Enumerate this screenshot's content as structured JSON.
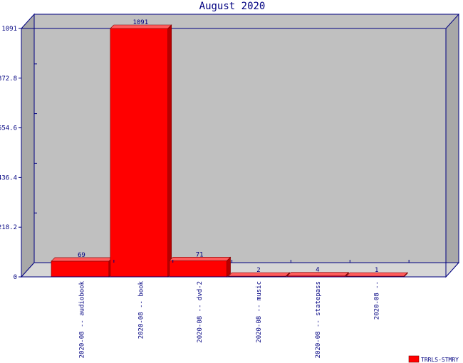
{
  "chart_data": {
    "type": "bar",
    "title": "August 2020",
    "categories": [
      "2020-08 -- audiobook",
      "2020-08 -- book",
      "2020-08 -- dvd-2",
      "2020-08 -- music",
      "2020-08 -- statepass",
      "2020-08 --"
    ],
    "series": [
      {
        "name": "TRRLS-STMRY",
        "values": [
          69,
          1091,
          71,
          2,
          4,
          1
        ]
      }
    ],
    "ylim": [
      0,
      1091
    ],
    "yticks": [
      "0",
      "218.2",
      "436.4",
      "654.6",
      "872.8",
      "1091"
    ],
    "xlabel": "",
    "ylabel": "",
    "legend_position": "bottom-right",
    "grid": false,
    "colors": {
      "bar": "#ff0000",
      "bar_top": "#ff5c5c",
      "bar_side": "#b80000",
      "wall": "#c0c0c0",
      "wall_side": "#a8a8a8",
      "floor": "#d6d6d6",
      "axis": "#000080",
      "text": "#000080"
    }
  }
}
